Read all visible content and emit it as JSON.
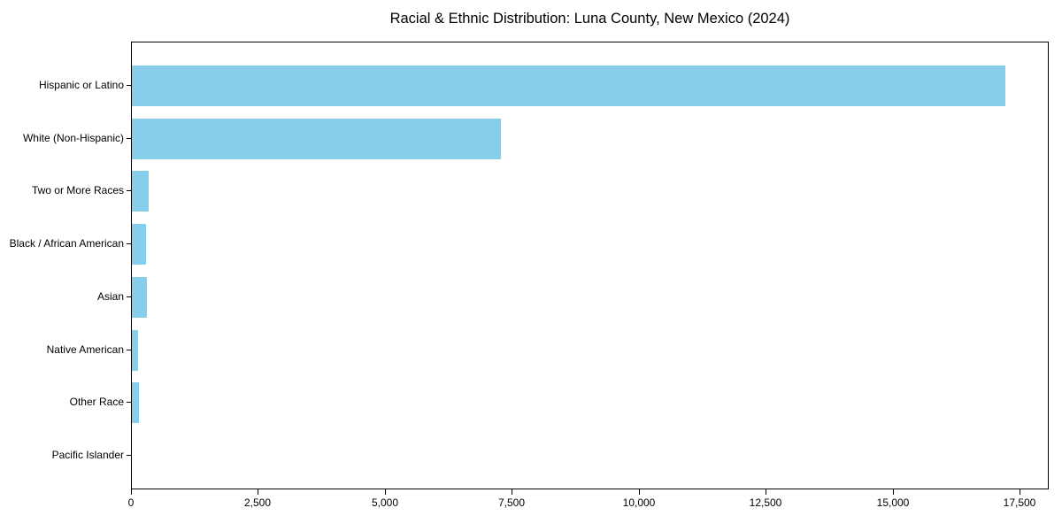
{
  "chart_data": {
    "type": "bar",
    "orientation": "horizontal",
    "title": "Racial & Ethnic Distribution: Luna County, New Mexico (2024)",
    "categories": [
      "Hispanic or Latino",
      "White (Non-Hispanic)",
      "Two or More Races",
      "Black / African American",
      "Asian",
      "Native American",
      "Other Race",
      "Pacific Islander"
    ],
    "values": [
      17200,
      7270,
      325,
      280,
      295,
      115,
      130,
      0
    ],
    "xlabel": "",
    "ylabel": "",
    "xlim": [
      0,
      18050
    ],
    "xticks": [
      0,
      2500,
      5000,
      7500,
      10000,
      12500,
      15000,
      17500
    ],
    "xtick_labels": [
      "0",
      "2,500",
      "5,000",
      "7,500",
      "10,000",
      "12,500",
      "15,000",
      "17,500"
    ],
    "grid": false,
    "legend": null,
    "colors": {
      "bar": "#87CEEB",
      "axis": "#000000",
      "text": "#000000",
      "background": "#ffffff"
    }
  }
}
